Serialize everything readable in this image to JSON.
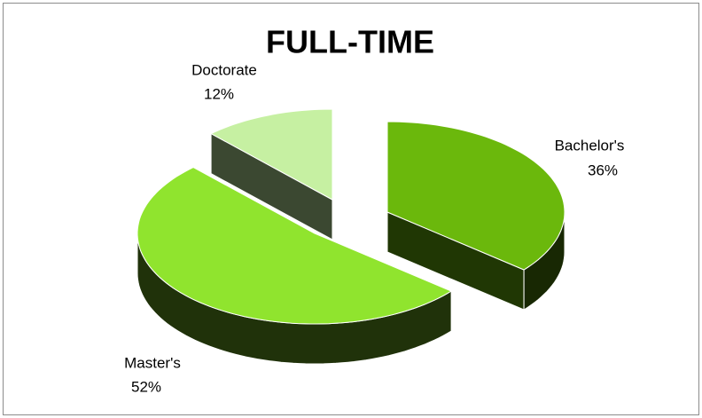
{
  "chart_data": {
    "type": "pie",
    "title": "FULL-TIME",
    "categories": [
      "Bachelor's",
      "Master's",
      "Doctorate"
    ],
    "values": [
      36,
      52,
      12
    ],
    "value_labels": [
      "36%",
      "52%",
      "12%"
    ],
    "colors": [
      "#6bb80c",
      "#90e42e",
      "#c6f0a2"
    ],
    "three_d": true,
    "exploded": true
  }
}
